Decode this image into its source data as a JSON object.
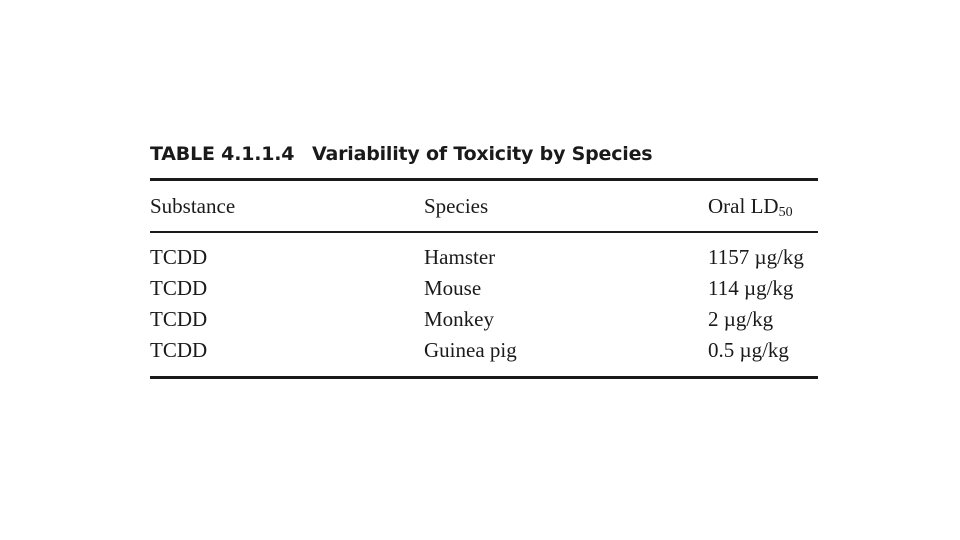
{
  "table": {
    "caption_number": "TABLE 4.1.1.4",
    "caption_title": "Variability of Toxicity by Species",
    "headers": {
      "substance": "Substance",
      "species": "Species",
      "ld50_main": "Oral LD",
      "ld50_sub": "50"
    },
    "rows": [
      {
        "substance": "TCDD",
        "species": "Hamster",
        "ld50": "1157 µg/kg"
      },
      {
        "substance": "TCDD",
        "species": "Mouse",
        "ld50": "114 µg/kg"
      },
      {
        "substance": "TCDD",
        "species": "Monkey",
        "ld50": "2 µg/kg"
      },
      {
        "substance": "TCDD",
        "species": "Guinea pig",
        "ld50": "0.5 µg/kg"
      }
    ]
  }
}
